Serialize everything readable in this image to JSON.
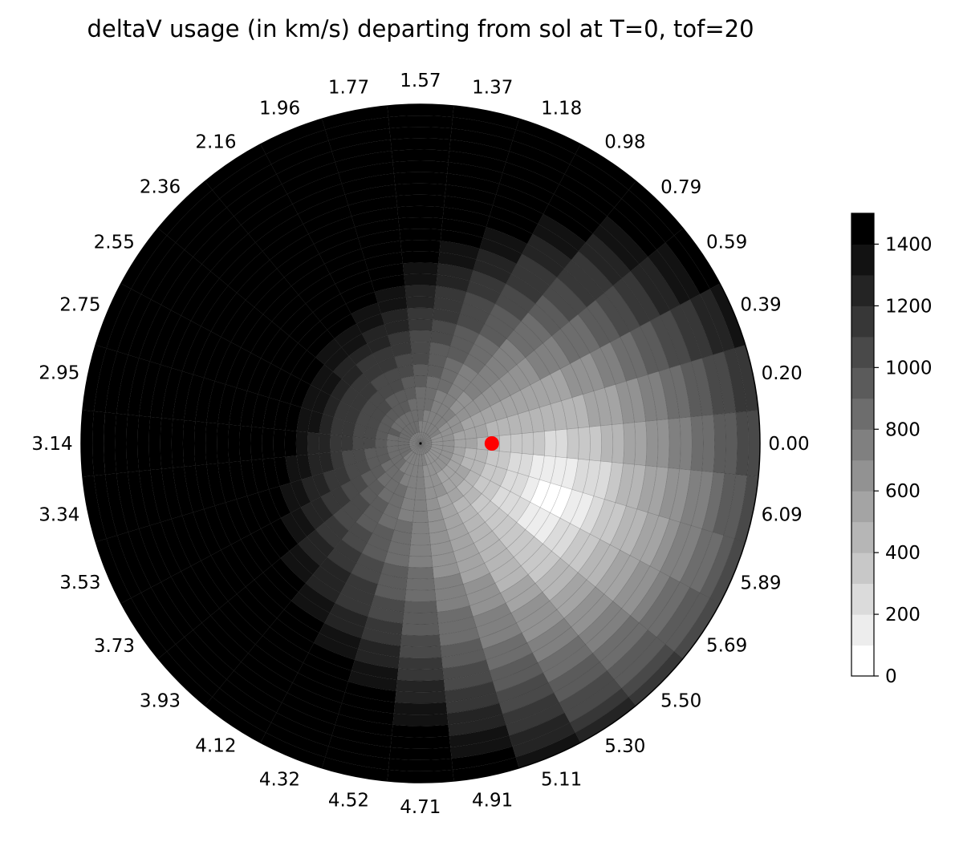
{
  "chart_data": {
    "type": "heatmap",
    "projection": "polar",
    "title": "deltaV usage (in km/s) departing from sol at T=0, tof=20",
    "angle_tick_labels": [
      "0.00",
      "0.20",
      "0.39",
      "0.59",
      "0.79",
      "0.98",
      "1.18",
      "1.37",
      "1.57",
      "1.77",
      "1.96",
      "2.16",
      "2.36",
      "2.55",
      "2.75",
      "2.95",
      "3.14",
      "3.34",
      "3.53",
      "3.73",
      "3.93",
      "4.12",
      "4.32",
      "4.52",
      "4.71",
      "4.91",
      "5.11",
      "5.30",
      "5.50",
      "5.69",
      "5.89",
      "6.09"
    ],
    "angle_tick_values": [
      0.0,
      0.196,
      0.393,
      0.589,
      0.785,
      0.982,
      1.178,
      1.374,
      1.571,
      1.767,
      1.963,
      2.16,
      2.356,
      2.553,
      2.749,
      2.945,
      3.142,
      3.338,
      3.534,
      3.731,
      3.927,
      4.123,
      4.32,
      4.516,
      4.712,
      4.909,
      5.105,
      5.301,
      5.498,
      5.694,
      5.89,
      6.087
    ],
    "angular_bins": 32,
    "radial_bins": 30,
    "colormap": "Greys",
    "colorbar": {
      "ticks": [
        "0",
        "200",
        "400",
        "600",
        "800",
        "1000",
        "1200",
        "1400"
      ],
      "tick_values": [
        0,
        200,
        400,
        600,
        800,
        1000,
        1200,
        1400
      ],
      "min": 0,
      "max": 1500,
      "levels": 15
    },
    "value_model": {
      "description_of_field": "deltaV in km/s over polar grid; minimum near angle 5.9 rad at 40% radius, maximum (saturated) on the left half",
      "min_point_angle": 5.9,
      "min_point_radius_fraction": 0.42,
      "center_value": 600,
      "outer_left_value": 1500,
      "outer_right_value": 950
    },
    "marker": {
      "angle": 0.0,
      "radius_fraction": 0.21,
      "color": "#ff0000"
    }
  }
}
